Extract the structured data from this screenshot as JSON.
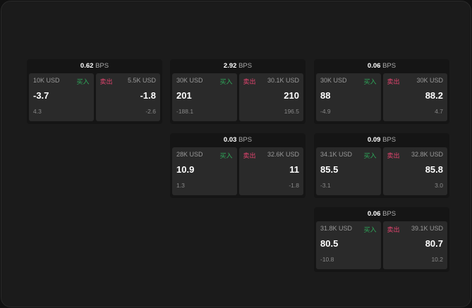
{
  "buy_label": "买入",
  "sell_label": "卖出",
  "unit": "BPS",
  "colors": {
    "buy": "#2ea85a",
    "sell": "#e0446e"
  },
  "cards": [
    {
      "spread": "0.62",
      "buy": {
        "size": "10K USD",
        "price": "-3.7",
        "change": "4.3"
      },
      "sell": {
        "size": "5.5K USD",
        "price": "-1.8",
        "change": "-2.6"
      }
    },
    {
      "spread": "2.92",
      "buy": {
        "size": "30K USD",
        "price": "201",
        "change": "-188.1"
      },
      "sell": {
        "size": "30.1K USD",
        "price": "210",
        "change": "196.5"
      }
    },
    {
      "spread": "0.06",
      "buy": {
        "size": "30K USD",
        "price": "88",
        "change": "-4.9"
      },
      "sell": {
        "size": "30K USD",
        "price": "88.2",
        "change": "4.7"
      }
    },
    {
      "spread": "0.03",
      "buy": {
        "size": "28K USD",
        "price": "10.9",
        "change": "1.3"
      },
      "sell": {
        "size": "32.6K USD",
        "price": "11",
        "change": "-1.8"
      }
    },
    {
      "spread": "0.09",
      "buy": {
        "size": "34.1K USD",
        "price": "85.5",
        "change": "-3.1"
      },
      "sell": {
        "size": "32.8K USD",
        "price": "85.8",
        "change": "3.0"
      }
    },
    {
      "spread": "0.06",
      "buy": {
        "size": "31.8K USD",
        "price": "80.5",
        "change": "-10.8"
      },
      "sell": {
        "size": "39.1K USD",
        "price": "80.7",
        "change": "10.2"
      }
    }
  ]
}
